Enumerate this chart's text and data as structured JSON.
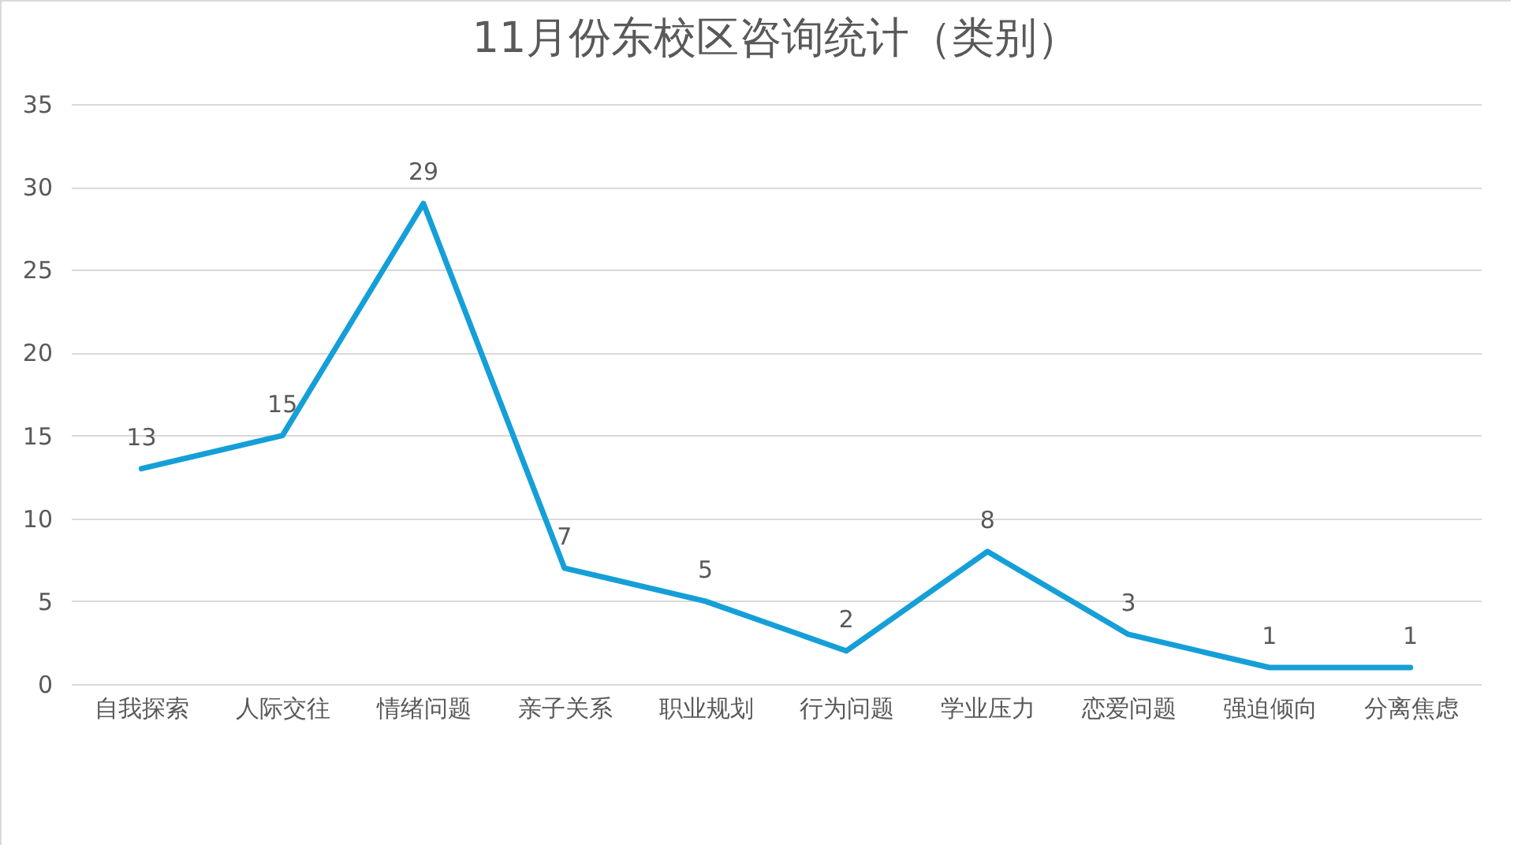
{
  "chart_data": {
    "type": "line",
    "title": "11月份东校区咨询统计（类别）",
    "categories": [
      "自我探索",
      "人际交往",
      "情绪问题",
      "亲子关系",
      "职业规划",
      "行为问题",
      "学业压力",
      "恋爱问题",
      "强迫倾向",
      "分离焦虑"
    ],
    "series": [
      {
        "color": "#159fd8",
        "values": [
          13,
          15,
          29,
          7,
          5,
          2,
          8,
          3,
          1,
          1
        ]
      }
    ],
    "ylim": [
      0,
      35
    ],
    "yticks": [
      0,
      5,
      10,
      15,
      20,
      25,
      30,
      35
    ],
    "grid": "y",
    "data_labels": true,
    "marker": "none",
    "line_style": "solid"
  }
}
